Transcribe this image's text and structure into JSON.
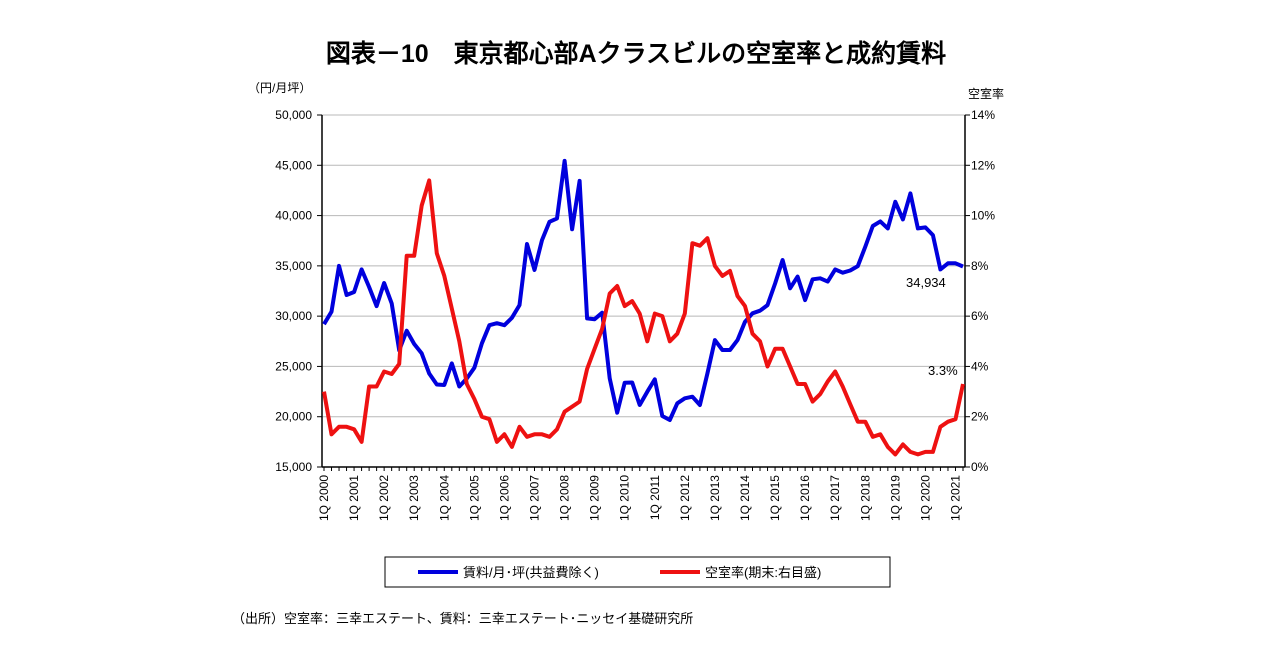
{
  "chart_data": {
    "type": "line",
    "title": "図表－10　東京都心部Aクラスビルの空室率と成約賃料",
    "y_left_unit": "（円/月坪）",
    "y_right_unit": "空室率",
    "source": "（出所）空室率：三幸エステート、賃料：三幸エステート･ニッセイ基礎研究所",
    "y_left_range": [
      15000,
      50000
    ],
    "y_left_ticks": [
      "15,000",
      "20,000",
      "25,000",
      "30,000",
      "35,000",
      "40,000",
      "45,000",
      "50,000"
    ],
    "y_right_range": [
      0,
      14
    ],
    "y_right_ticks": [
      "0%",
      "2%",
      "4%",
      "6%",
      "8%",
      "10%",
      "12%",
      "14%"
    ],
    "x_tick_labels": [
      "1Q 2000",
      "1Q 2001",
      "1Q 2002",
      "1Q 2003",
      "1Q 2004",
      "1Q 2005",
      "1Q 2006",
      "1Q 2007",
      "1Q 2008",
      "1Q 2009",
      "1Q 2010",
      "1Q 2011",
      "1Q 2012",
      "1Q 2013",
      "1Q 2014",
      "1Q 2015",
      "1Q 2016",
      "1Q 2017",
      "1Q 2018",
      "1Q 2019",
      "1Q 2020",
      "1Q 2021"
    ],
    "x_start": "1Q 2000",
    "x_end": "2Q 2021",
    "grid": true,
    "legend_position": "bottom",
    "annotations": {
      "rent_last": "34,934",
      "vacancy_last": "3.3%"
    },
    "series": [
      {
        "name": "賃料/月･坪(共益費除く)",
        "axis": "left",
        "color": "#0000dd",
        "values": [
          29200,
          30440,
          35000,
          32100,
          32400,
          34650,
          32900,
          31000,
          33300,
          31270,
          26600,
          28550,
          27230,
          26300,
          24300,
          23200,
          23150,
          25300,
          23000,
          23800,
          24870,
          27300,
          29100,
          29300,
          29100,
          29840,
          31100,
          37170,
          34600,
          37560,
          39380,
          39720,
          45440,
          38630,
          43450,
          29780,
          29700,
          30340,
          23820,
          20400,
          23380,
          23400,
          21160,
          22490,
          23720,
          20070,
          19670,
          21330,
          21830,
          21990,
          21160,
          24300,
          27620,
          26630,
          26630,
          27620,
          29440,
          30280,
          30540,
          31100,
          33250,
          35580,
          32770,
          33930,
          31600,
          33660,
          33760,
          33430,
          34650,
          34320,
          34540,
          34980,
          36900,
          38960,
          39420,
          38720,
          41370,
          39620,
          42200,
          38720,
          38820,
          38060,
          34650,
          35250,
          35250,
          34934
        ]
      },
      {
        "name": "空室率(期末:右目盛)",
        "axis": "right",
        "color": "#ee1111",
        "values": [
          3.0,
          1.3,
          1.6,
          1.6,
          1.5,
          1.0,
          3.2,
          3.2,
          3.8,
          3.7,
          4.1,
          8.4,
          8.4,
          10.4,
          11.4,
          8.5,
          7.6,
          6.3,
          5.0,
          3.3,
          2.7,
          2.0,
          1.9,
          1.0,
          1.3,
          0.8,
          1.6,
          1.2,
          1.3,
          1.3,
          1.2,
          1.5,
          2.2,
          2.4,
          2.6,
          3.9,
          4.7,
          5.5,
          6.9,
          7.2,
          6.4,
          6.6,
          6.1,
          5.0,
          6.1,
          6.0,
          5.0,
          5.3,
          6.1,
          8.9,
          8.8,
          9.1,
          8.0,
          7.6,
          7.8,
          6.8,
          6.4,
          5.3,
          5.0,
          4.0,
          4.7,
          4.7,
          4.0,
          3.3,
          3.3,
          2.6,
          2.9,
          3.4,
          3.8,
          3.2,
          2.5,
          1.8,
          1.8,
          1.2,
          1.3,
          0.8,
          0.5,
          0.9,
          0.6,
          0.5,
          0.6,
          0.6,
          1.6,
          1.8,
          1.9,
          3.3
        ]
      }
    ]
  }
}
